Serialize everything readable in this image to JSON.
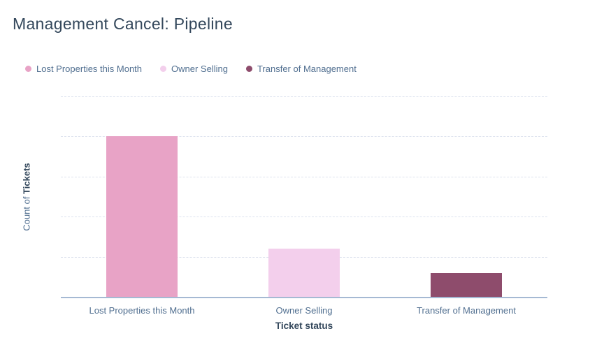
{
  "title": "Management Cancel: Pipeline",
  "colors": {
    "title_text": "#33475b",
    "muted_text": "#516f90",
    "axis_line": "#a5b9d3",
    "gridline": "#dde2ee",
    "bar_lost_properties": "#e8a3c6",
    "bar_owner_selling": "#f3cfec",
    "bar_transfer_of_management": "#8e4c6c"
  },
  "chart_data": {
    "type": "bar",
    "title": "Management Cancel: Pipeline",
    "categories": [
      "Lost Properties this Month",
      "Owner Selling",
      "Transfer of Management"
    ],
    "values": [
      20,
      6,
      3
    ],
    "series": [
      {
        "name": "Lost Properties this Month",
        "value": 20,
        "color": "#e8a3c6"
      },
      {
        "name": "Owner Selling",
        "value": 6,
        "color": "#f3cfec"
      },
      {
        "name": "Transfer of Management",
        "value": 3,
        "color": "#8e4c6c"
      }
    ],
    "xlabel": "Ticket status",
    "ylabel": "Count of Tickets",
    "ylabel_regular": "Count of ",
    "ylabel_bold": "Tickets",
    "ylim": [
      0,
      25
    ],
    "yticks": [
      5,
      10,
      15,
      20,
      25
    ],
    "y_tick_labels_visible": false,
    "grid": "horizontal-dashed",
    "legend_position": "top-left",
    "legend_entries": [
      "Lost Properties this Month",
      "Owner Selling",
      "Transfer of Management"
    ]
  }
}
